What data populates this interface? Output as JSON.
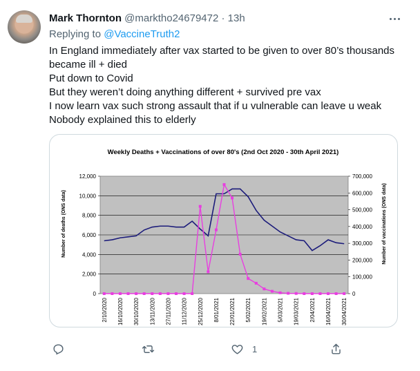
{
  "tweet": {
    "author_name": "Mark Thornton",
    "author_handle": "@marktho24679472",
    "separator": "·",
    "time": "13h",
    "replying_prefix": "Replying to ",
    "replying_to": "@VaccineTruth2",
    "body_lines": [
      "In England immediately after vax started to be given to over 80’s thousands became ill + died",
      "Put down to Covid",
      "But they weren’t doing anything different + survived pre vax",
      "I now learn vax such strong assault that if u vulnerable can leave u weak",
      "Nobody explained this to elderly"
    ],
    "actions": {
      "reply_count": "",
      "retweet_count": "",
      "like_count": "1",
      "share_count": ""
    }
  },
  "icons": [
    "more-icon",
    "reply-icon",
    "retweet-icon",
    "like-icon",
    "share-icon"
  ],
  "colors": {
    "link": "#1d9bf0",
    "secondary_text": "#536471",
    "deaths_line": "#1b1b7a",
    "vaccinations_line": "#e83ee0",
    "plot_bg": "#c0c0c0"
  },
  "chart_data": {
    "type": "line",
    "title": "Weekly Deaths + Vaccinations of over 80's (2nd Oct 2020 - 30th April 2021)",
    "ylabel": "Number of deaths (ONS data)",
    "y2label": "Number of vaccinations (ONS data)",
    "ylim": [
      0,
      12000
    ],
    "y2lim": [
      0,
      700000
    ],
    "yticks": [
      "0",
      "2,000",
      "4,000",
      "6,000",
      "8,000",
      "10,000",
      "12,000"
    ],
    "y2ticks": [
      "0",
      "100,000",
      "200,000",
      "300,000",
      "400,000",
      "500,000",
      "600,000",
      "700,000"
    ],
    "xtick_labels": [
      "2/10/2020",
      "16/10/2020",
      "30/10/2020",
      "13/11/2020",
      "27/11/2020",
      "11/12/2020",
      "25/12/2020",
      "8/01/2021",
      "22/01/2021",
      "5/02/2021",
      "19/02/2021",
      "5/03/2021",
      "19/03/2021",
      "2/04/2021",
      "16/04/2021",
      "30/04/2021"
    ],
    "grid": true,
    "series": [
      {
        "name": "",
        "axis": "left",
        "values": [
          5400,
          5500,
          5700,
          5800,
          5900,
          6500,
          6800,
          6900,
          6900,
          6800,
          6800,
          7400,
          6600,
          5900,
          10200,
          10200,
          10700,
          10700,
          9900,
          8500,
          7500,
          6900,
          6300,
          5900,
          5500,
          5400,
          4400,
          4900,
          5500,
          5200,
          5100
        ]
      },
      {
        "name": "",
        "axis": "right",
        "values": [
          0,
          0,
          0,
          0,
          0,
          0,
          0,
          0,
          0,
          0,
          0,
          0,
          520000,
          130000,
          380000,
          650000,
          570000,
          235000,
          90000,
          62000,
          28000,
          14000,
          5000,
          2000,
          1000,
          0,
          0,
          0,
          0,
          0,
          0
        ]
      }
    ]
  }
}
